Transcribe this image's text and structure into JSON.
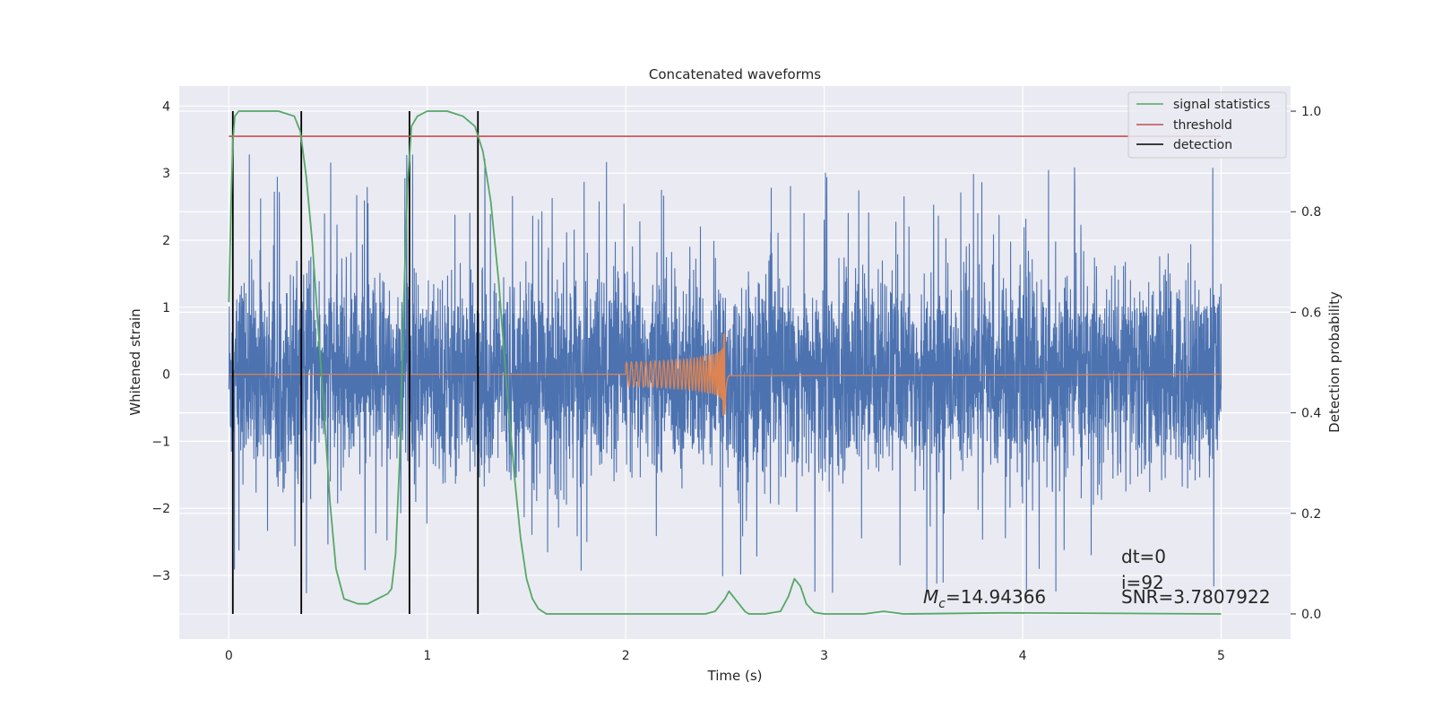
{
  "chart_data": {
    "type": "line",
    "title": "Concatenated waveforms",
    "xlabel": "Time (s)",
    "ylabel": "Whitened strain",
    "y2label": "Detection probability",
    "xlim": [
      -0.25,
      5.35
    ],
    "ylim": [
      -3.95,
      4.3
    ],
    "y2lim": [
      -0.05,
      1.05
    ],
    "xticks": [
      0,
      1,
      2,
      3,
      4,
      5
    ],
    "yticks": [
      -3,
      -2,
      -1,
      0,
      1,
      2,
      3,
      4
    ],
    "y2ticks": [
      0.0,
      0.2,
      0.4,
      0.6,
      0.8,
      1.0
    ],
    "grid": true,
    "legend_position": "top-right",
    "series": [
      {
        "name": "signal statistics",
        "color": "#55a868",
        "axis": "right",
        "x": [
          0.0,
          0.01,
          0.02,
          0.03,
          0.05,
          0.08,
          0.15,
          0.25,
          0.33,
          0.36,
          0.39,
          0.42,
          0.45,
          0.48,
          0.51,
          0.54,
          0.58,
          0.65,
          0.7,
          0.75,
          0.8,
          0.82,
          0.84,
          0.86,
          0.88,
          0.9,
          0.92,
          0.95,
          1.0,
          1.1,
          1.18,
          1.24,
          1.28,
          1.32,
          1.36,
          1.4,
          1.44,
          1.47,
          1.5,
          1.53,
          1.56,
          1.6,
          2.0,
          2.4,
          2.45,
          2.5,
          2.52,
          2.55,
          2.6,
          2.62,
          2.7,
          2.78,
          2.82,
          2.85,
          2.88,
          2.91,
          2.95,
          3.0,
          3.2,
          3.3,
          3.4,
          3.9,
          4.5,
          5.0
        ],
        "y": [
          0.62,
          0.8,
          0.94,
          0.99,
          1.0,
          1.0,
          1.0,
          1.0,
          0.99,
          0.96,
          0.87,
          0.74,
          0.57,
          0.4,
          0.22,
          0.09,
          0.03,
          0.02,
          0.02,
          0.03,
          0.04,
          0.05,
          0.12,
          0.3,
          0.6,
          0.85,
          0.97,
          0.99,
          1.0,
          1.0,
          0.99,
          0.97,
          0.92,
          0.82,
          0.66,
          0.45,
          0.27,
          0.15,
          0.07,
          0.03,
          0.01,
          0.0,
          0.0,
          0.0,
          0.005,
          0.03,
          0.045,
          0.03,
          0.005,
          0.0,
          0.0,
          0.005,
          0.035,
          0.07,
          0.055,
          0.02,
          0.003,
          0.0,
          0.0,
          0.005,
          0.0,
          0.002,
          0.001,
          0.0
        ]
      },
      {
        "name": "threshold",
        "color": "#c44e52",
        "axis": "right",
        "x": [
          0.0,
          5.0
        ],
        "y": [
          0.95,
          0.95
        ]
      },
      {
        "name": "detection",
        "color": "#000000",
        "axis": "right",
        "type": "vlines",
        "x": [
          0.02,
          0.365,
          0.91,
          1.255
        ],
        "ymin": 0.0,
        "ymax": 1.0
      },
      {
        "name": "",
        "color": "#4c72b0",
        "axis": "left",
        "type": "noise",
        "x_range": [
          0.0,
          5.0
        ],
        "typical_band": [
          -1.6,
          1.6
        ],
        "max": 3.95,
        "min": -3.58
      },
      {
        "name": "",
        "color": "#dd8452",
        "axis": "left",
        "type": "chirp",
        "x_range": [
          2.0,
          2.52
        ],
        "peak_time": 2.5,
        "peak_amplitude": 0.62,
        "min_amplitude": -0.75
      }
    ],
    "annotations": {
      "dt": "dt=0",
      "i": "i=92",
      "snr": "SNR=3.7807922",
      "mc_prefix": "M",
      "mc_sub": "c",
      "mc_value": "=14.94366"
    }
  },
  "colors": {
    "axes_background": "#eaeaf2",
    "grid": "#ffffff"
  }
}
